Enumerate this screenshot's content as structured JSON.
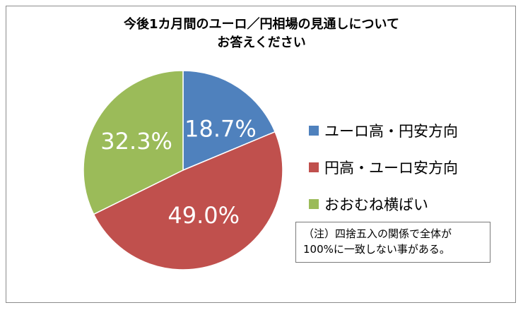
{
  "chart_data": {
    "type": "pie",
    "title_lines": [
      "今後1カ月間のユーロ／円相場の見通しについて",
      "お答えください"
    ],
    "slices": [
      {
        "label": "ユーロ高・円安方向",
        "value": 18.7,
        "display": "18.7%",
        "color": "#4f81bd"
      },
      {
        "label": "円高・ユーロ安方向",
        "value": 49.0,
        "display": "49.0%",
        "color": "#c0504d"
      },
      {
        "label": "おおむね横ばい",
        "value": 32.3,
        "display": "32.3%",
        "color": "#9bbb59"
      }
    ],
    "legend_position": "right",
    "note_lines": [
      "（注）四捨五入の関係で全体が",
      "100%に一致しない事がある。"
    ]
  }
}
